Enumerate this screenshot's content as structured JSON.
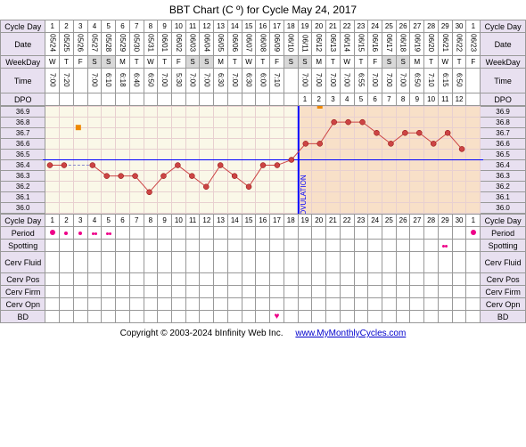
{
  "title": "BBT Chart (C º) for Cycle May 24, 2017",
  "footer": {
    "copyright": "Copyright © 2003-2024 bInfinity Web Inc.",
    "link_text": "www.MyMonthlyCycles.com"
  },
  "labels": {
    "cycle_day": "Cycle Day",
    "date": "Date",
    "weekday": "WeekDay",
    "time": "Time",
    "dpo": "DPO",
    "period": "Period",
    "spotting": "Spotting",
    "cerv_fluid": "Cerv Fluid",
    "cerv_pos": "Cerv Pos",
    "cerv_firm": "Cerv Firm",
    "cerv_opn": "Cerv Opn",
    "bd": "BD"
  },
  "chart": {
    "type": "line",
    "ovulation_day": 18,
    "ovulation_label": "OVULATION",
    "coverline_temp": 36.45,
    "pre_ov_color": "#faf8e8",
    "post_ov_color": "#f8e0c8",
    "line_color": "#c44",
    "point_color": "#c44",
    "ov_line_color": "#0000ff",
    "grid_color": "#e8d0d0",
    "ylim": [
      36.0,
      36.9
    ],
    "ytick_step": 0.1,
    "temp_labels": [
      "36.9",
      "36.8",
      "36.7",
      "36.6",
      "36.5",
      "36.4",
      "36.3",
      "36.2",
      "36.1",
      "36.0"
    ]
  },
  "days": [
    {
      "cd": 1,
      "date": "05/24",
      "wd": "W",
      "time": "7:00",
      "dpo": "",
      "temp": 36.4,
      "period": "dot",
      "spot": "",
      "bd": ""
    },
    {
      "cd": 2,
      "date": "05/25",
      "wd": "T",
      "time": "7:20",
      "dpo": "",
      "temp": 36.4,
      "period": "dot-sm",
      "spot": "",
      "bd": ""
    },
    {
      "cd": 3,
      "date": "05/26",
      "wd": "F",
      "time": "",
      "dpo": "",
      "temp": null,
      "period": "dot-sm",
      "spot": "",
      "bd": "",
      "opk": "sq"
    },
    {
      "cd": 4,
      "date": "05/27",
      "wd": "S",
      "time": "7:00",
      "dpo": "",
      "temp": 36.4,
      "period": "dots",
      "spot": "",
      "bd": ""
    },
    {
      "cd": 5,
      "date": "05/28",
      "wd": "S",
      "time": "6:10",
      "dpo": "",
      "temp": 36.3,
      "period": "dots",
      "spot": "",
      "bd": ""
    },
    {
      "cd": 6,
      "date": "05/29",
      "wd": "M",
      "time": "6:18",
      "dpo": "",
      "temp": 36.3,
      "period": "",
      "spot": "",
      "bd": ""
    },
    {
      "cd": 7,
      "date": "05/30",
      "wd": "T",
      "time": "6:40",
      "dpo": "",
      "temp": 36.3,
      "period": "",
      "spot": "",
      "bd": ""
    },
    {
      "cd": 8,
      "date": "05/31",
      "wd": "W",
      "time": "6:50",
      "dpo": "",
      "temp": 36.15,
      "period": "",
      "spot": "",
      "bd": ""
    },
    {
      "cd": 9,
      "date": "06/01",
      "wd": "T",
      "time": "7:00",
      "dpo": "",
      "temp": 36.3,
      "period": "",
      "spot": "",
      "bd": ""
    },
    {
      "cd": 10,
      "date": "06/02",
      "wd": "F",
      "time": "5:30",
      "dpo": "",
      "temp": 36.4,
      "period": "",
      "spot": "",
      "bd": ""
    },
    {
      "cd": 11,
      "date": "06/03",
      "wd": "S",
      "time": "7:00",
      "dpo": "",
      "temp": 36.3,
      "period": "",
      "spot": "",
      "bd": ""
    },
    {
      "cd": 12,
      "date": "06/04",
      "wd": "S",
      "time": "7:00",
      "dpo": "",
      "temp": 36.2,
      "period": "",
      "spot": "",
      "bd": ""
    },
    {
      "cd": 13,
      "date": "06/05",
      "wd": "M",
      "time": "6:30",
      "dpo": "",
      "temp": 36.4,
      "period": "",
      "spot": "",
      "bd": ""
    },
    {
      "cd": 14,
      "date": "06/06",
      "wd": "T",
      "time": "7:00",
      "dpo": "",
      "temp": 36.3,
      "period": "",
      "spot": "",
      "bd": ""
    },
    {
      "cd": 15,
      "date": "06/07",
      "wd": "W",
      "time": "6:30",
      "dpo": "",
      "temp": 36.2,
      "period": "",
      "spot": "",
      "bd": ""
    },
    {
      "cd": 16,
      "date": "06/08",
      "wd": "T",
      "time": "6:00",
      "dpo": "",
      "temp": 36.4,
      "period": "",
      "spot": "",
      "bd": ""
    },
    {
      "cd": 17,
      "date": "06/09",
      "wd": "F",
      "time": "7:10",
      "dpo": "",
      "temp": 36.4,
      "period": "",
      "spot": "",
      "bd": "heart"
    },
    {
      "cd": 18,
      "date": "06/10",
      "wd": "S",
      "time": "",
      "dpo": "",
      "temp": 36.45,
      "period": "",
      "spot": "",
      "bd": ""
    },
    {
      "cd": 19,
      "date": "06/11",
      "wd": "S",
      "time": "7:00",
      "dpo": "1",
      "temp": 36.6,
      "period": "",
      "spot": "",
      "bd": ""
    },
    {
      "cd": 20,
      "date": "06/12",
      "wd": "M",
      "time": "7:00",
      "dpo": "2",
      "temp": 36.6,
      "period": "",
      "spot": "",
      "bd": "",
      "opk": "sq"
    },
    {
      "cd": 21,
      "date": "06/13",
      "wd": "T",
      "time": "7:00",
      "dpo": "3",
      "temp": 36.8,
      "period": "",
      "spot": "",
      "bd": ""
    },
    {
      "cd": 22,
      "date": "06/14",
      "wd": "W",
      "time": "7:00",
      "dpo": "4",
      "temp": 36.8,
      "period": "",
      "spot": "",
      "bd": ""
    },
    {
      "cd": 23,
      "date": "06/15",
      "wd": "T",
      "time": "6:55",
      "dpo": "5",
      "temp": 36.8,
      "period": "",
      "spot": "",
      "bd": ""
    },
    {
      "cd": 24,
      "date": "06/16",
      "wd": "F",
      "time": "7:00",
      "dpo": "6",
      "temp": 36.7,
      "period": "",
      "spot": "",
      "bd": ""
    },
    {
      "cd": 25,
      "date": "06/17",
      "wd": "S",
      "time": "7:00",
      "dpo": "7",
      "temp": 36.6,
      "period": "",
      "spot": "",
      "bd": ""
    },
    {
      "cd": 26,
      "date": "06/18",
      "wd": "S",
      "time": "7:00",
      "dpo": "8",
      "temp": 36.7,
      "period": "",
      "spot": "",
      "bd": ""
    },
    {
      "cd": 27,
      "date": "06/19",
      "wd": "M",
      "time": "6:50",
      "dpo": "9",
      "temp": 36.7,
      "period": "",
      "spot": "",
      "bd": ""
    },
    {
      "cd": 28,
      "date": "06/20",
      "wd": "T",
      "time": "7:10",
      "dpo": "10",
      "temp": 36.6,
      "period": "",
      "spot": "",
      "bd": ""
    },
    {
      "cd": 29,
      "date": "06/21",
      "wd": "W",
      "time": "6:15",
      "dpo": "11",
      "temp": 36.7,
      "period": "",
      "spot": "dots",
      "bd": ""
    },
    {
      "cd": 30,
      "date": "06/22",
      "wd": "T",
      "time": "6:50",
      "dpo": "12",
      "temp": 36.55,
      "period": "",
      "spot": "",
      "bd": ""
    },
    {
      "cd": 1,
      "date": "06/23",
      "wd": "F",
      "time": "",
      "dpo": "",
      "temp": null,
      "period": "dot",
      "spot": "",
      "bd": ""
    }
  ]
}
